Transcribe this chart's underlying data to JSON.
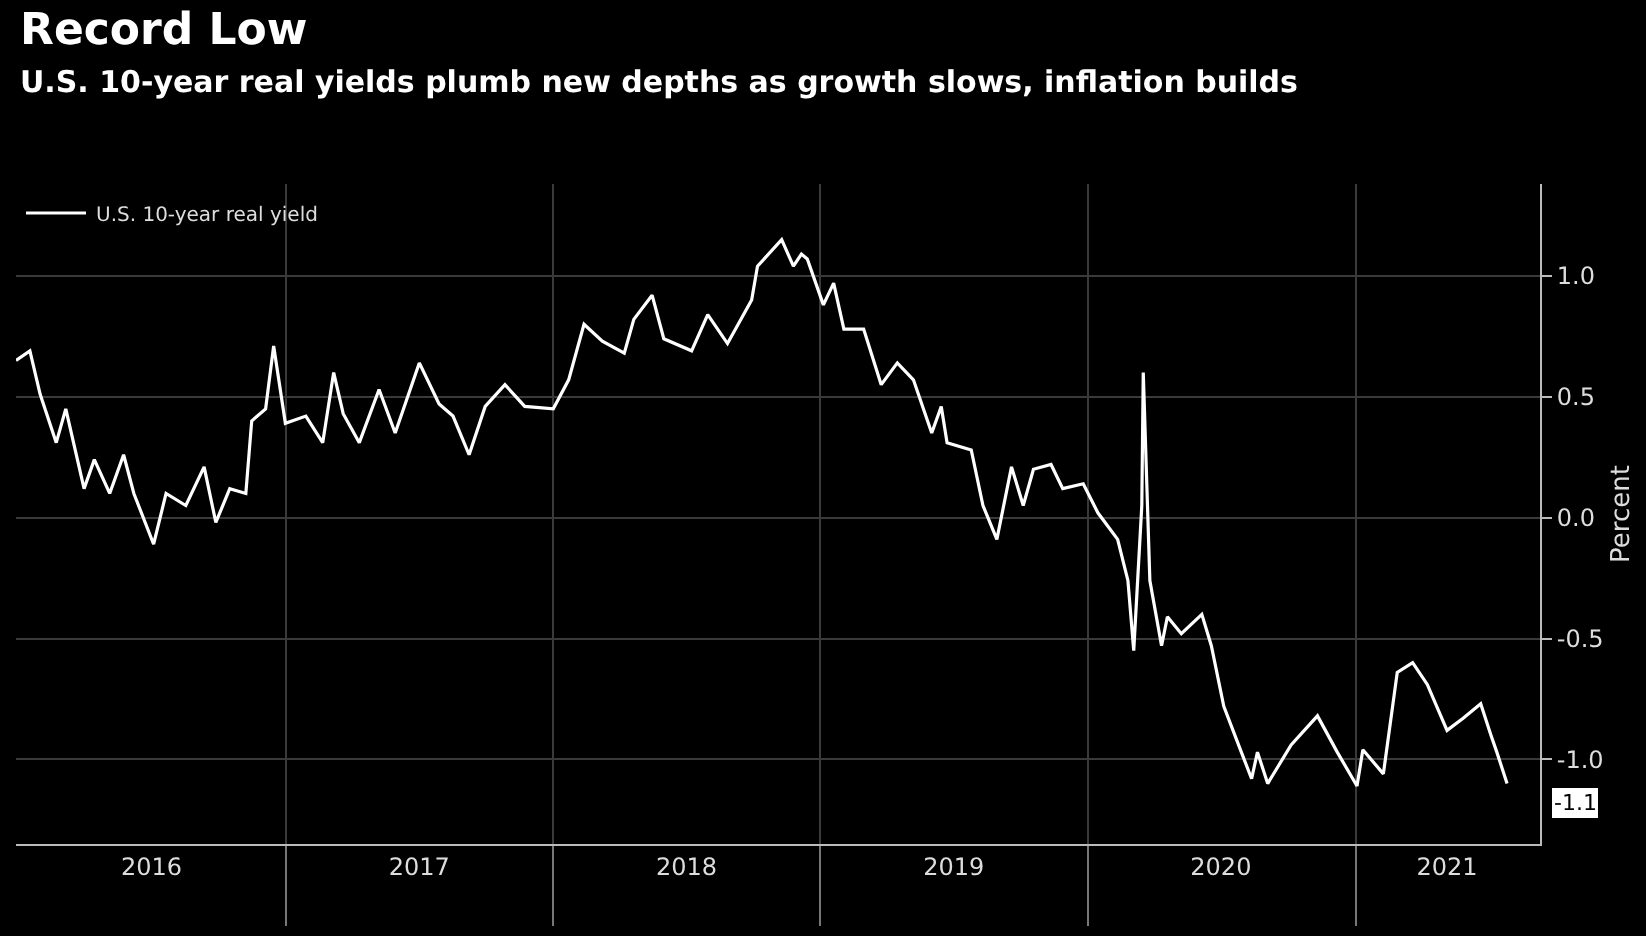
{
  "chart_data": {
    "type": "line",
    "title": "Record Low",
    "subtitle": "U.S. 10-year real yields plumb new depths as growth slows, inflation builds",
    "ylabel": "Percent",
    "x": [
      "2015-12-29",
      "2016-01-17",
      "2016-01-31",
      "2016-02-22",
      "2016-03-06",
      "2016-03-31",
      "2016-04-14",
      "2016-05-05",
      "2016-05-24",
      "2016-06-07",
      "2016-07-04",
      "2016-07-21",
      "2016-08-17",
      "2016-09-11",
      "2016-09-27",
      "2016-10-16",
      "2016-11-07",
      "2016-11-15",
      "2016-12-04",
      "2016-12-15",
      "2016-12-31",
      "2017-01-28",
      "2017-02-20",
      "2017-03-07",
      "2017-03-20",
      "2017-04-11",
      "2017-05-08",
      "2017-05-30",
      "2017-07-02",
      "2017-07-29",
      "2017-08-17",
      "2017-09-08",
      "2017-09-30",
      "2017-10-27",
      "2017-11-23",
      "2018-01-01",
      "2018-01-22",
      "2018-02-12",
      "2018-03-09",
      "2018-04-08",
      "2018-04-21",
      "2018-05-16",
      "2018-06-01",
      "2018-07-09",
      "2018-07-31",
      "2018-08-27",
      "2018-09-29",
      "2018-10-07",
      "2018-11-09",
      "2018-11-25",
      "2018-12-06",
      "2018-12-14",
      "2019-01-05",
      "2019-01-19",
      "2019-02-02",
      "2019-03-01",
      "2019-03-25",
      "2019-04-16",
      "2019-05-08",
      "2019-06-02",
      "2019-06-15",
      "2019-06-23",
      "2019-07-26",
      "2019-08-11",
      "2019-08-30",
      "2019-09-19",
      "2019-10-05",
      "2019-10-19",
      "2019-11-12",
      "2019-11-28",
      "2019-12-26",
      "2020-01-15",
      "2020-02-11",
      "2020-02-25",
      "2020-03-04",
      "2020-03-15",
      "2020-03-17",
      "2020-03-26",
      "2020-04-11",
      "2020-04-19",
      "2020-05-08",
      "2020-06-05",
      "2020-06-18",
      "2020-07-05",
      "2020-07-29",
      "2020-08-12",
      "2020-08-20",
      "2020-09-03",
      "2020-10-05",
      "2020-11-10",
      "2020-12-07",
      "2021-01-03",
      "2021-01-11",
      "2021-02-08",
      "2021-02-27",
      "2021-03-20",
      "2021-04-09",
      "2021-05-06",
      "2021-05-28",
      "2021-06-21",
      "2021-07-05",
      "2021-07-13",
      "2021-07-27"
    ],
    "series": [
      {
        "name": "U.S. 10-year real yield",
        "color": "#ffffff",
        "values": [
          0.65,
          0.69,
          0.51,
          0.31,
          0.45,
          0.12,
          0.24,
          0.1,
          0.26,
          0.1,
          -0.11,
          0.1,
          0.05,
          0.21,
          -0.02,
          0.12,
          0.1,
          0.4,
          0.45,
          0.71,
          0.39,
          0.42,
          0.31,
          0.6,
          0.43,
          0.31,
          0.53,
          0.35,
          0.64,
          0.47,
          0.42,
          0.26,
          0.46,
          0.55,
          0.46,
          0.45,
          0.57,
          0.8,
          0.73,
          0.68,
          0.82,
          0.92,
          0.74,
          0.69,
          0.84,
          0.72,
          0.9,
          1.04,
          1.15,
          1.04,
          1.09,
          1.07,
          0.88,
          0.97,
          0.78,
          0.78,
          0.55,
          0.64,
          0.57,
          0.35,
          0.46,
          0.31,
          0.28,
          0.05,
          -0.09,
          0.21,
          0.05,
          0.2,
          0.22,
          0.12,
          0.14,
          0.02,
          -0.09,
          -0.26,
          -0.55,
          0.05,
          0.6,
          -0.26,
          -0.53,
          -0.41,
          -0.48,
          -0.4,
          -0.53,
          -0.78,
          -0.97,
          -1.08,
          -0.97,
          -1.1,
          -0.94,
          -0.82,
          -0.97,
          -1.11,
          -0.96,
          -1.06,
          -0.64,
          -0.6,
          -0.69,
          -0.88,
          -0.83,
          -0.77,
          -0.9,
          -0.97,
          -1.1
        ]
      }
    ],
    "xlim": [
      "2015-12-29",
      "2021-09-10"
    ],
    "xticks": [
      {
        "value": "2016-07-01",
        "label": "2016"
      },
      {
        "value": "2017-01-01",
        "label": null
      },
      {
        "value": "2017-07-02",
        "label": "2017"
      },
      {
        "value": "2018-01-01",
        "label": null
      },
      {
        "value": "2018-07-02",
        "label": "2018"
      },
      {
        "value": "2019-01-01",
        "label": null
      },
      {
        "value": "2019-07-02",
        "label": "2019"
      },
      {
        "value": "2020-01-01",
        "label": null
      },
      {
        "value": "2020-07-01",
        "label": "2020"
      },
      {
        "value": "2021-01-01",
        "label": null
      },
      {
        "value": "2021-05-06",
        "label": "2021"
      }
    ],
    "ylim": [
      -1.35,
      1.38
    ],
    "yticks": [
      {
        "value": -1,
        "label": "-1.0"
      },
      {
        "value": -0.5,
        "label": "-0.5"
      },
      {
        "value": 0,
        "label": "0.0"
      },
      {
        "value": 0.5,
        "label": "0.5"
      },
      {
        "value": 1,
        "label": "1.0"
      }
    ],
    "annotations": [
      {
        "text": "-1.1",
        "x": "2021-07-27",
        "y": -1.1
      }
    ],
    "grid": true,
    "legend": "top left",
    "marker": "none",
    "line_style": "solid"
  }
}
